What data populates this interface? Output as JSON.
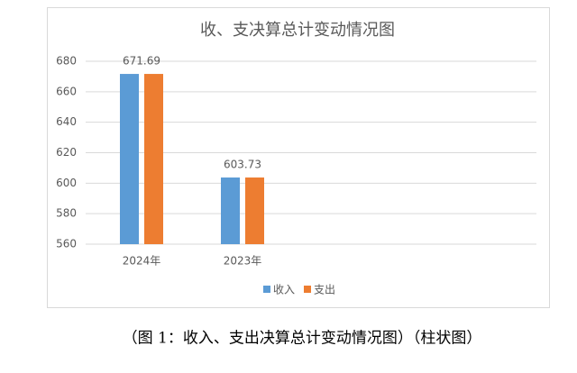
{
  "chart_data": {
    "type": "bar",
    "title": "收、支决算总计变动情况图",
    "categories": [
      "2024年",
      "2023年"
    ],
    "series": [
      {
        "name": "收入",
        "color": "#5b9bd5",
        "values": [
          671.69,
          603.73
        ]
      },
      {
        "name": "支出",
        "color": "#ed7d31",
        "values": [
          671.69,
          603.73
        ]
      }
    ],
    "ylim": [
      560,
      680
    ],
    "yticks": [
      560,
      580,
      600,
      620,
      640,
      660,
      680
    ],
    "grid": true,
    "legend": "bottom"
  },
  "caption": "（图 1：收入、支出决算总计变动情况图）（柱状图）"
}
